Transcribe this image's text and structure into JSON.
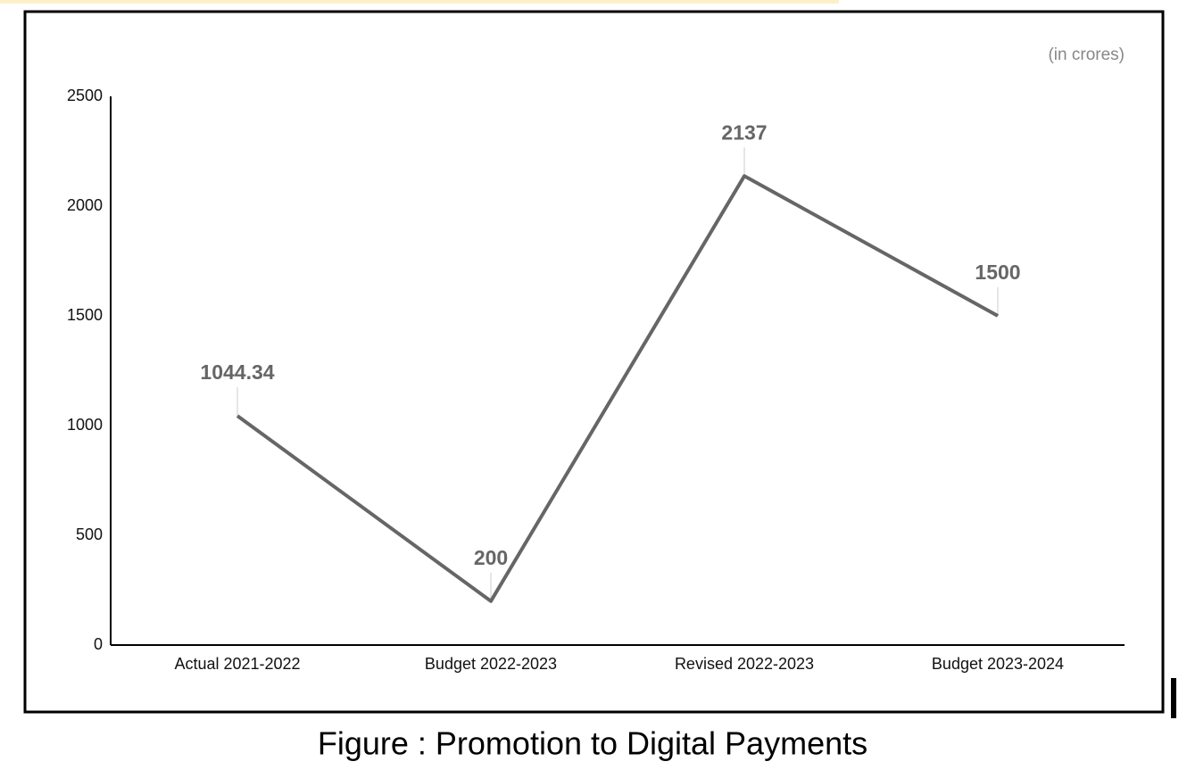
{
  "chart_data": {
    "type": "line",
    "annotation": "(in crores)",
    "categories": [
      "Actual 2021-2022",
      "Budget 2022-2023",
      "Revised 2022-2023",
      "Budget 2023-2024"
    ],
    "values": [
      1044.34,
      200,
      2137,
      1500
    ],
    "color": "#666666",
    "ylim": [
      0,
      2500
    ],
    "yticks": [
      0,
      500,
      1000,
      1500,
      2000,
      2500
    ],
    "grid": false
  },
  "figure_caption": "Figure : Promotion to Digital Payments"
}
